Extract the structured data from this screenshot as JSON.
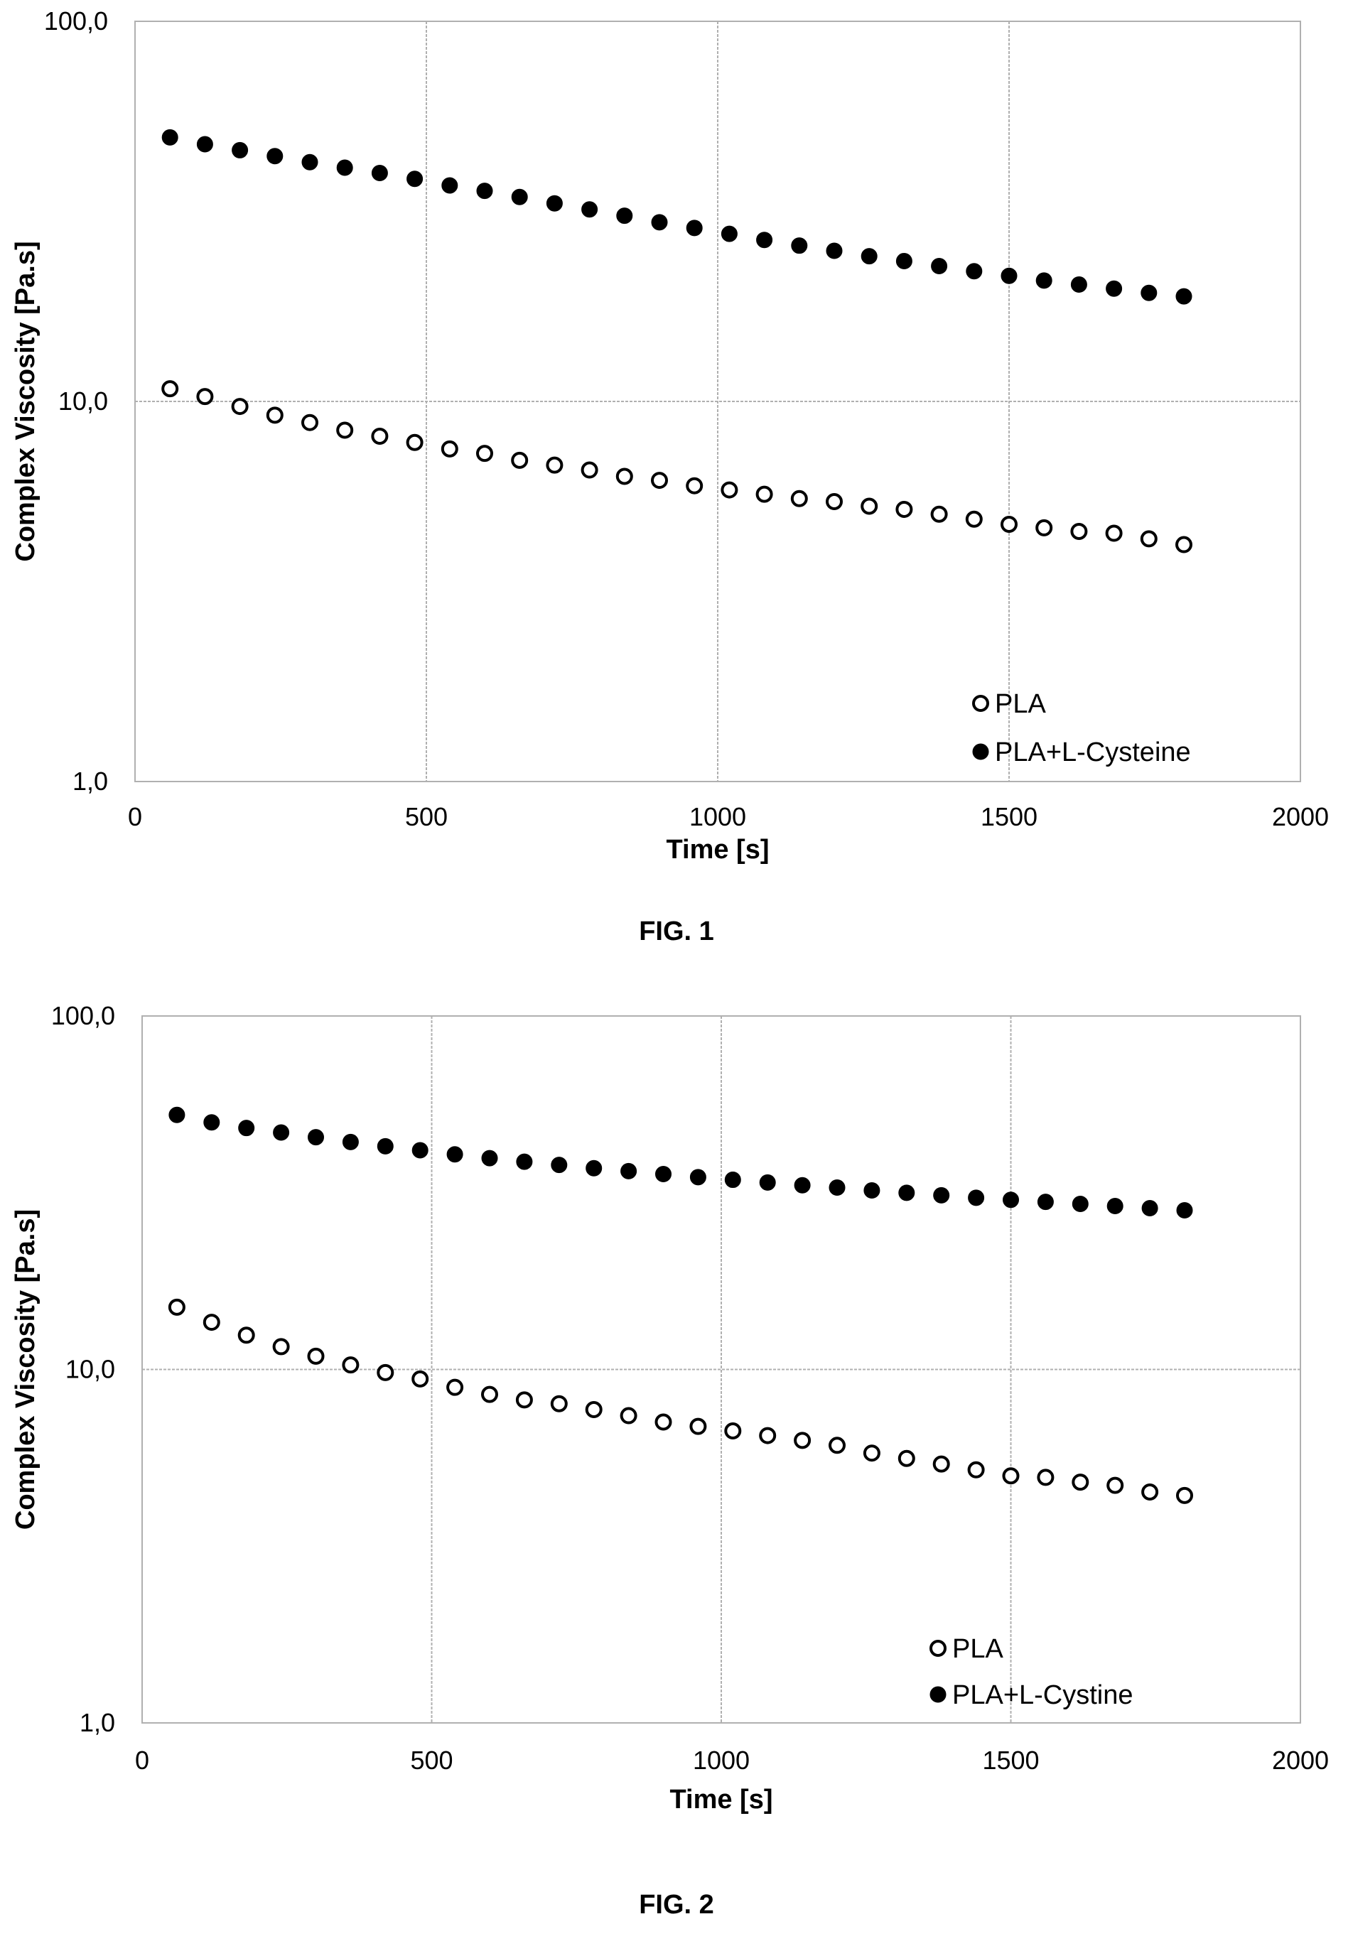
{
  "figures": [
    {
      "caption": "FIG. 1",
      "chart_data": {
        "type": "scatter",
        "xlabel": "Time [s]",
        "ylabel": "Complex Viscosity [Pa.s]",
        "xlim": [
          0,
          2000
        ],
        "ylim": [
          1,
          100
        ],
        "yscale": "log",
        "x_ticks": [
          "0",
          "500",
          "1000",
          "1500",
          "2000"
        ],
        "y_ticks": [
          "1,0",
          "10,0",
          "100,0"
        ],
        "grid": true,
        "legend_position": "bottom-right",
        "x": [
          60,
          120,
          180,
          240,
          300,
          360,
          420,
          480,
          540,
          600,
          660,
          720,
          780,
          840,
          900,
          960,
          1020,
          1080,
          1140,
          1200,
          1260,
          1320,
          1380,
          1440,
          1500,
          1560,
          1620,
          1680,
          1740,
          1800
        ],
        "series": [
          {
            "name": "PLA",
            "marker": "open-circle",
            "values": [
              10.8,
              10.3,
              9.7,
              9.2,
              8.8,
              8.4,
              8.1,
              7.8,
              7.5,
              7.3,
              7.0,
              6.8,
              6.6,
              6.35,
              6.2,
              6.0,
              5.85,
              5.7,
              5.55,
              5.45,
              5.3,
              5.2,
              5.05,
              4.9,
              4.75,
              4.65,
              4.55,
              4.5,
              4.35,
              4.2
            ]
          },
          {
            "name": "PLA+L-Cysteine",
            "marker": "filled-circle",
            "values": [
              49.5,
              47.5,
              45.8,
              44.2,
              42.6,
              41.2,
              39.9,
              38.5,
              37.0,
              35.8,
              34.5,
              33.2,
              32.0,
              30.8,
              29.6,
              28.6,
              27.6,
              26.6,
              25.7,
              24.9,
              24.1,
              23.4,
              22.7,
              22.0,
              21.4,
              20.8,
              20.3,
              19.8,
              19.3,
              18.9
            ]
          }
        ]
      }
    },
    {
      "caption": "FIG. 2",
      "chart_data": {
        "type": "scatter",
        "xlabel": "Time [s]",
        "ylabel": "Complex Viscosity [Pa.s]",
        "xlim": [
          0,
          2000
        ],
        "ylim": [
          1,
          100
        ],
        "yscale": "log",
        "x_ticks": [
          "0",
          "500",
          "1000",
          "1500",
          "2000"
        ],
        "y_ticks": [
          "1,0",
          "10,0",
          "100,0"
        ],
        "grid": true,
        "legend_position": "bottom-right",
        "x": [
          60,
          120,
          180,
          240,
          300,
          360,
          420,
          480,
          540,
          600,
          660,
          720,
          780,
          840,
          900,
          960,
          1020,
          1080,
          1140,
          1200,
          1260,
          1320,
          1380,
          1440,
          1500,
          1560,
          1620,
          1680,
          1740,
          1800
        ],
        "series": [
          {
            "name": "PLA",
            "marker": "open-circle",
            "values": [
              15.0,
              13.6,
              12.5,
              11.6,
              10.9,
              10.3,
              9.8,
              9.4,
              8.9,
              8.5,
              8.2,
              8.0,
              7.7,
              7.4,
              7.1,
              6.9,
              6.7,
              6.5,
              6.3,
              6.1,
              5.8,
              5.6,
              5.4,
              5.2,
              5.0,
              4.95,
              4.8,
              4.7,
              4.5,
              4.4
            ]
          },
          {
            "name": "PLA+L-Cystine",
            "marker": "filled-circle",
            "values": [
              52.5,
              50.0,
              48.2,
              46.8,
              45.4,
              44.0,
              42.8,
              41.7,
              40.6,
              39.6,
              38.7,
              37.9,
              37.1,
              36.4,
              35.7,
              35.0,
              34.4,
              33.8,
              33.2,
              32.7,
              32.1,
              31.6,
              31.1,
              30.6,
              30.2,
              29.8,
              29.4,
              29.0,
              28.6,
              28.2
            ]
          }
        ]
      }
    }
  ]
}
